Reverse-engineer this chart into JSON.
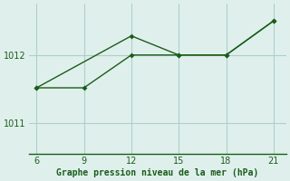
{
  "background_color": "#dff0ec",
  "line_color": "#1a5c1a",
  "grid_color": "#aecfc8",
  "xlabel": "Graphe pression niveau de la mer (hPa)",
  "xlabel_color": "#1a5c1a",
  "xticks": [
    6,
    9,
    12,
    15,
    18,
    21
  ],
  "yticks": [
    1011,
    1012
  ],
  "ylim": [
    1010.55,
    1012.75
  ],
  "xlim": [
    5.5,
    21.8
  ],
  "line1_x": [
    6,
    9,
    12,
    15,
    18,
    21
  ],
  "line1_y": [
    1011.52,
    1011.52,
    1012.0,
    1012.0,
    1012.0,
    1012.5
  ],
  "line2_x": [
    6,
    12,
    15,
    18,
    21
  ],
  "line2_y": [
    1011.52,
    1012.28,
    1012.0,
    1012.0,
    1012.5
  ]
}
